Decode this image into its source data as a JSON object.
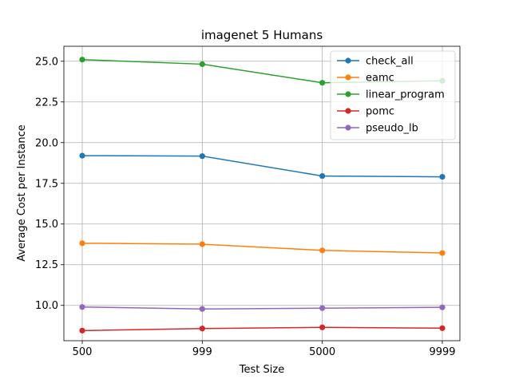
{
  "chart_data": {
    "type": "line",
    "title": "imagenet 5 Humans",
    "xlabel": "Test Size",
    "ylabel": "Average Cost per Instance",
    "categories": [
      "500",
      "999",
      "5000",
      "9999"
    ],
    "yticks": [
      "10.0",
      "12.5",
      "15.0",
      "17.5",
      "20.0",
      "22.5",
      "25.0"
    ],
    "ylim": [
      7.83,
      25.92
    ],
    "grid": true,
    "legend_position": "top-right",
    "series": [
      {
        "name": "check_all",
        "color": "#1f77b4",
        "values": [
          19.2,
          19.17,
          17.95,
          17.9
        ]
      },
      {
        "name": "eamc",
        "color": "#ff7f0e",
        "values": [
          13.82,
          13.76,
          13.38,
          13.22
        ]
      },
      {
        "name": "linear_program",
        "color": "#2ca02c",
        "values": [
          25.1,
          24.82,
          23.68,
          23.8
        ]
      },
      {
        "name": "pomc",
        "color": "#d62728",
        "values": [
          8.45,
          8.58,
          8.65,
          8.6
        ]
      },
      {
        "name": "pseudo_lb",
        "color": "#9467bd",
        "values": [
          9.9,
          9.78,
          9.83,
          9.88
        ]
      }
    ]
  }
}
